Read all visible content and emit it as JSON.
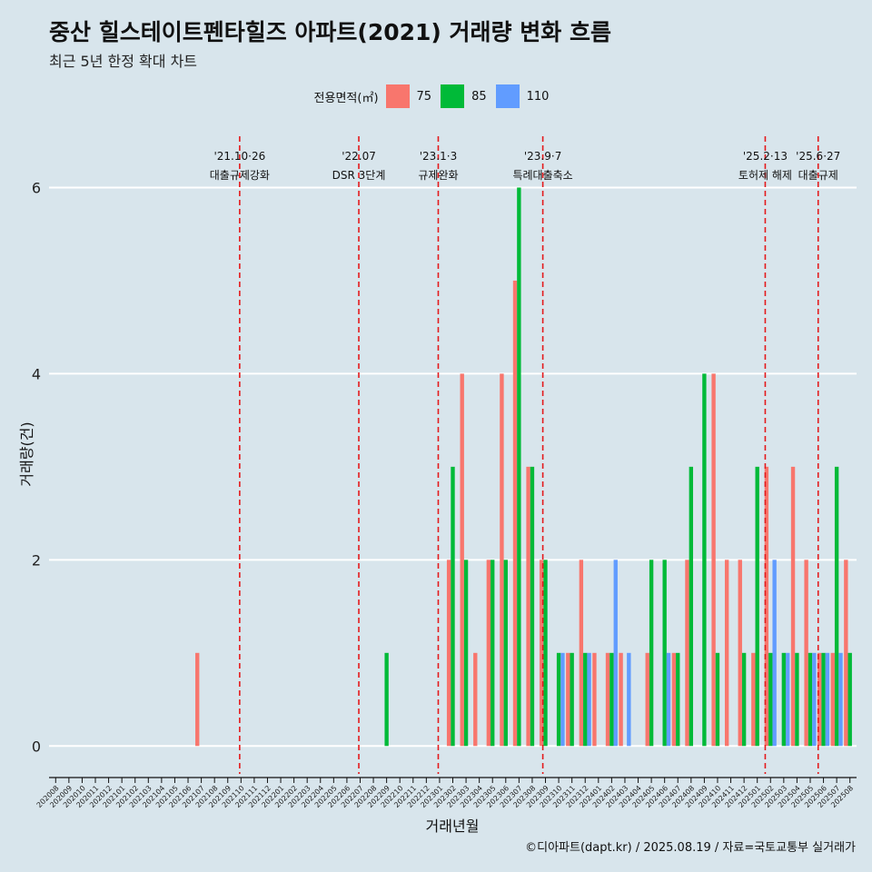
{
  "title": "중산 힐스테이트펜타힐즈 아파트(2021) 거래량 변화 흐름",
  "subtitle": "최근 5년 한정 확대 차트",
  "caption": "©디아파트(dapt.kr) / 2025.08.19 / 자료=국토교통부 실거래가",
  "colors": {
    "75": "#f8766d",
    "85": "#00ba38",
    "110": "#619cff",
    "background": "#d8e5ec",
    "vline": "#e41a1c"
  },
  "chart_data": {
    "type": "bar",
    "xlabel": "거래년월",
    "ylabel": "거래량(건)",
    "ylim": [
      -0.3,
      6.6
    ],
    "yticks": [
      0,
      2,
      4,
      6
    ],
    "grid": true,
    "legend": {
      "title": "전용면적(㎡)",
      "placement": "top"
    },
    "categories": [
      "202008",
      "202009",
      "202010",
      "202011",
      "202012",
      "202101",
      "202102",
      "202103",
      "202104",
      "202105",
      "202106",
      "202107",
      "202108",
      "202109",
      "202110",
      "202111",
      "202112",
      "202201",
      "202202",
      "202203",
      "202204",
      "202205",
      "202206",
      "202207",
      "202208",
      "202209",
      "202210",
      "202211",
      "202212",
      "202301",
      "202302",
      "202303",
      "202304",
      "202305",
      "202306",
      "202307",
      "202308",
      "202309",
      "202310",
      "202311",
      "202312",
      "202401",
      "202402",
      "202403",
      "202404",
      "202405",
      "202406",
      "202407",
      "202408",
      "202409",
      "202410",
      "202411",
      "202412",
      "202501",
      "202502",
      "202503",
      "202504",
      "202505",
      "202506",
      "202507",
      "202508"
    ],
    "series": [
      {
        "name": "75",
        "values": [
          0,
          0,
          0,
          0,
          0,
          0,
          0,
          0,
          0,
          0,
          0,
          1,
          0,
          0,
          0,
          0,
          0,
          0,
          0,
          0,
          0,
          0,
          0,
          0,
          0,
          0,
          0,
          0,
          0,
          0,
          2,
          4,
          1,
          2,
          4,
          5,
          3,
          2,
          0,
          1,
          2,
          1,
          1,
          1,
          0,
          1,
          0,
          1,
          2,
          0,
          4,
          2,
          2,
          1,
          3,
          0,
          3,
          2,
          1,
          1,
          2
        ]
      },
      {
        "name": "85",
        "values": [
          0,
          0,
          0,
          0,
          0,
          0,
          0,
          0,
          0,
          0,
          0,
          0,
          0,
          0,
          0,
          0,
          0,
          0,
          0,
          0,
          0,
          0,
          0,
          0,
          0,
          1,
          0,
          0,
          0,
          0,
          3,
          2,
          0,
          2,
          2,
          6,
          3,
          2,
          1,
          1,
          1,
          0,
          1,
          0,
          0,
          2,
          2,
          1,
          3,
          4,
          1,
          0,
          1,
          3,
          1,
          1,
          1,
          1,
          1,
          3,
          1
        ]
      },
      {
        "name": "110",
        "values": [
          0,
          0,
          0,
          0,
          0,
          0,
          0,
          0,
          0,
          0,
          0,
          0,
          0,
          0,
          0,
          0,
          0,
          0,
          0,
          0,
          0,
          0,
          0,
          0,
          0,
          0,
          0,
          0,
          0,
          0,
          0,
          0,
          0,
          0,
          0,
          0,
          0,
          0,
          1,
          0,
          1,
          0,
          2,
          1,
          0,
          0,
          1,
          0,
          0,
          0,
          0,
          0,
          0,
          0,
          2,
          1,
          0,
          1,
          1,
          1,
          0
        ]
      }
    ],
    "annotations": [
      {
        "date": "'21.10·26",
        "label": "대출규제강화",
        "at": 13.9
      },
      {
        "date": "'22.07",
        "label": "DSR 3단계",
        "at": 22.9
      },
      {
        "date": "'23.1·3",
        "label": "규제완화",
        "at": 28.9
      },
      {
        "date": "'23.9·7",
        "label": "특례대출축소",
        "at": 36.8
      },
      {
        "date": "'25.2·13",
        "label": "토허제 해제",
        "at": 53.6
      },
      {
        "date": "'25.6·27",
        "label": "대출규제",
        "at": 57.6
      }
    ]
  }
}
